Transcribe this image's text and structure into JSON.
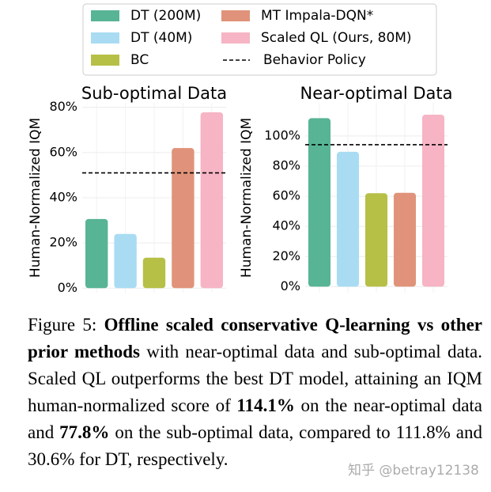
{
  "legend": {
    "items": [
      {
        "name": "DT (200M)",
        "color": "#57b495"
      },
      {
        "name": "DT (40M)",
        "color": "#a9dcf2"
      },
      {
        "name": "BC",
        "color": "#b6c047"
      },
      {
        "name": "MT Impala-DQN*",
        "color": "#e0937a"
      },
      {
        "name": "Scaled QL (Ours, 80M)",
        "color": "#f6b4c4"
      }
    ],
    "reference": "Behavior Policy"
  },
  "chart_data": [
    {
      "type": "bar",
      "title": "Sub-optimal Data",
      "y_label": "Human-Normalized IQM",
      "values": [
        30.6,
        24,
        13.5,
        62,
        77.8
      ],
      "reference_value": 51,
      "ylim": [
        -2,
        82
      ],
      "yticks": [
        {
          "value": 0,
          "label": "0%"
        },
        {
          "value": 20,
          "label": "20%"
        },
        {
          "value": 40,
          "label": "40%"
        },
        {
          "value": 60,
          "label": "60%"
        },
        {
          "value": 80,
          "label": "80%"
        }
      ],
      "grid": true
    },
    {
      "type": "bar",
      "title": "Near-optimal Data",
      "y_label": "Human-Normalized IQM",
      "values": [
        111.8,
        89.5,
        62,
        62.3,
        114.1
      ],
      "reference_value": 94.2,
      "ylim": [
        -4,
        122
      ],
      "yticks": [
        {
          "value": 0,
          "label": "0%"
        },
        {
          "value": 20,
          "label": "20%"
        },
        {
          "value": 40,
          "label": "40%"
        },
        {
          "value": 60,
          "label": "60%"
        },
        {
          "value": 80,
          "label": "80%"
        },
        {
          "value": 100,
          "label": "100%"
        }
      ],
      "grid": true
    }
  ],
  "caption": {
    "segments": [
      {
        "text": "Figure 5: ",
        "bold": false
      },
      {
        "text": "Offline scaled conservative Q-learning vs other prior methods",
        "bold": true
      },
      {
        "text": " with near-optimal data and sub-optimal data. Scaled QL outperforms the best DT model, attaining an IQM human-normalized score of ",
        "bold": false
      },
      {
        "text": "114.1%",
        "bold": true
      },
      {
        "text": " on the near-optimal data and ",
        "bold": false
      },
      {
        "text": "77.8%",
        "bold": true
      },
      {
        "text": " on the sub-optimal data, compared to 111.8% and 30.6% for DT, respectively.",
        "bold": false
      }
    ]
  },
  "watermark": "知乎 @betray12138"
}
